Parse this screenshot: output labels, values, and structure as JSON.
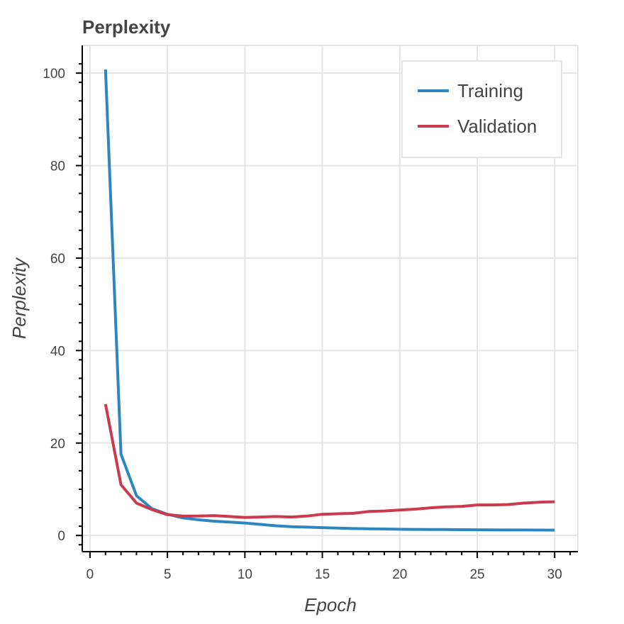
{
  "chart_data": {
    "type": "line",
    "title": "Perplexity",
    "xlabel": "Epoch",
    "ylabel": "Perplexity",
    "xlim": [
      -0.5,
      31.5
    ],
    "ylim": [
      -3.5,
      106
    ],
    "x_ticks": [
      0,
      5,
      10,
      15,
      20,
      25,
      30
    ],
    "y_ticks": [
      0,
      20,
      40,
      60,
      80,
      100
    ],
    "grid": true,
    "legend_position": "top-right",
    "series": [
      {
        "name": "Training",
        "color": "#2e86c1",
        "x": [
          1,
          2,
          3,
          4,
          5,
          6,
          7,
          8,
          9,
          10,
          11,
          12,
          13,
          14,
          15,
          16,
          17,
          18,
          19,
          20,
          21,
          22,
          23,
          24,
          25,
          26,
          27,
          28,
          29,
          30
        ],
        "values": [
          100.8,
          17.6,
          8.6,
          5.8,
          4.6,
          3.8,
          3.4,
          3.1,
          2.9,
          2.7,
          2.4,
          2.1,
          1.9,
          1.8,
          1.7,
          1.6,
          1.5,
          1.45,
          1.4,
          1.35,
          1.32,
          1.3,
          1.28,
          1.26,
          1.24,
          1.22,
          1.2,
          1.2,
          1.18,
          1.16
        ]
      },
      {
        "name": "Validation",
        "color": "#cb3a4e",
        "x": [
          1,
          2,
          3,
          4,
          5,
          6,
          7,
          8,
          9,
          10,
          11,
          12,
          13,
          14,
          15,
          16,
          17,
          18,
          19,
          20,
          21,
          22,
          23,
          24,
          25,
          26,
          27,
          28,
          29,
          30
        ],
        "values": [
          28.4,
          11.0,
          7.0,
          5.6,
          4.5,
          4.2,
          4.2,
          4.3,
          4.1,
          3.9,
          4.0,
          4.1,
          4.0,
          4.2,
          4.6,
          4.7,
          4.8,
          5.2,
          5.3,
          5.5,
          5.7,
          6.0,
          6.2,
          6.3,
          6.6,
          6.6,
          6.7,
          7.0,
          7.2,
          7.3
        ]
      }
    ]
  }
}
